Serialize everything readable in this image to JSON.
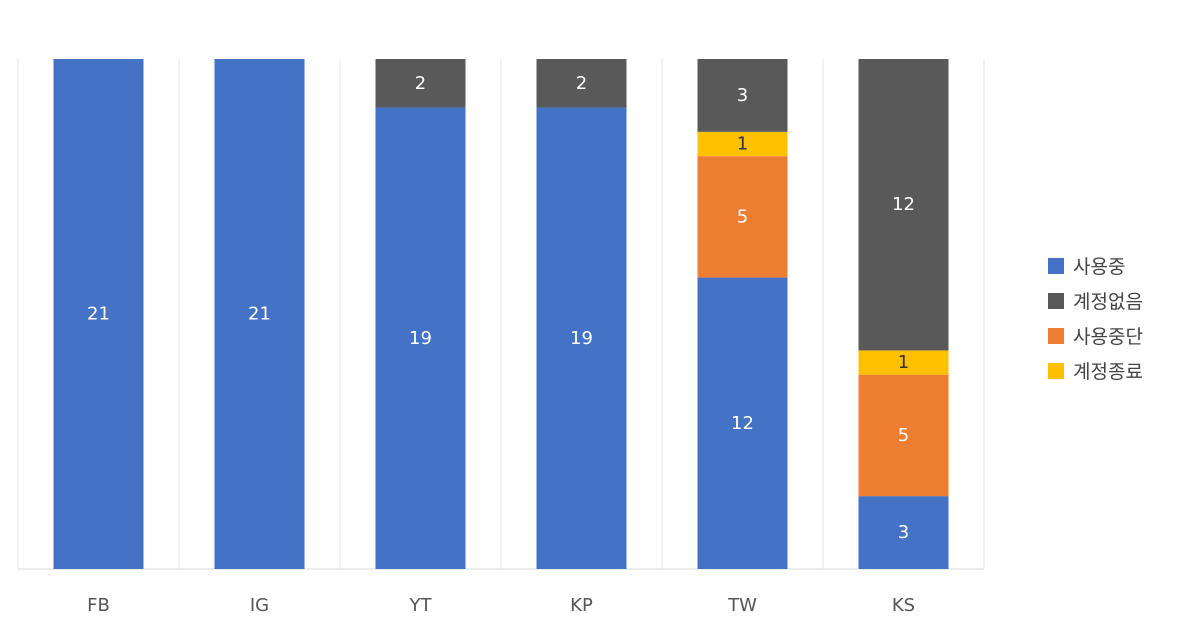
{
  "chart_data": {
    "type": "bar",
    "stacked": true,
    "categories": [
      "FB",
      "IG",
      "YT",
      "KP",
      "TW",
      "KS"
    ],
    "series": [
      {
        "name": "사용중",
        "color": "#4472C4",
        "label_color": "#ffffff",
        "values": [
          21,
          21,
          19,
          19,
          12,
          3
        ]
      },
      {
        "name": "사용중단",
        "color": "#ED7D31",
        "label_color": "#ffffff",
        "values": [
          0,
          0,
          0,
          0,
          5,
          5
        ]
      },
      {
        "name": "계정종료",
        "color": "#FFC000",
        "label_color": "#333333",
        "values": [
          0,
          0,
          0,
          0,
          1,
          1
        ]
      },
      {
        "name": "계정없음",
        "color": "#595959",
        "label_color": "#ffffff",
        "values": [
          0,
          0,
          2,
          2,
          3,
          12
        ]
      }
    ],
    "legend_order": [
      "사용중",
      "계정없음",
      "사용중단",
      "계정종료"
    ],
    "ylim": [
      0,
      21
    ],
    "legend_position": "right",
    "grid": "vertical-category-separators"
  }
}
